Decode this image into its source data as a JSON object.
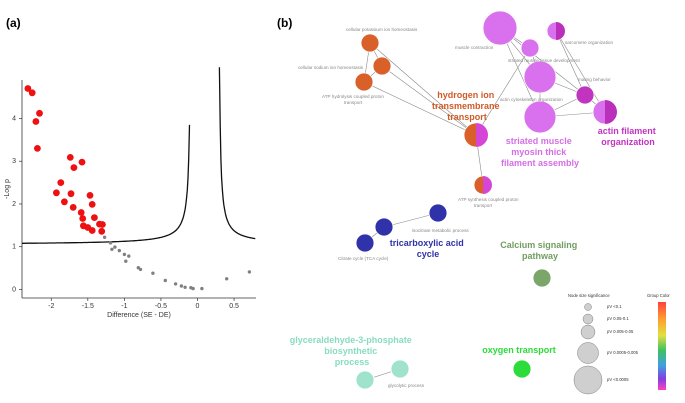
{
  "panels": {
    "a": "(a)",
    "b": "(b)"
  },
  "chart_data": [
    {
      "type": "scatter",
      "panel": "(a)",
      "title": "",
      "xlabel": "Difference (SE - DE)",
      "ylabel": "-Log p",
      "xlim": [
        -2.4,
        0.8
      ],
      "ylim": [
        -0.2,
        4.9
      ],
      "xticks": [
        -2,
        -1.5,
        -1,
        -0.5,
        0,
        0.5
      ],
      "xtick_labels": [
        "-2",
        "-1.5",
        "-1",
        "-0.5",
        "0",
        "0.5"
      ],
      "yticks": [
        0,
        1,
        2,
        3,
        4
      ],
      "ytick_labels": [
        "0",
        "1",
        "2",
        "3",
        "4"
      ],
      "colors": {
        "significant": "#ee1111",
        "nonsignificant": "#808080",
        "threshold": "#111111"
      },
      "series": [
        {
          "name": "",
          "color": "#ee1111",
          "points": [
            [
              -2.32,
              4.7
            ],
            [
              -2.26,
              4.6
            ],
            [
              -2.16,
              4.12
            ],
            [
              -2.21,
              3.93
            ],
            [
              -2.19,
              3.3
            ],
            [
              -1.74,
              3.09
            ],
            [
              -1.69,
              2.85
            ],
            [
              -1.58,
              2.98
            ],
            [
              -1.87,
              2.5
            ],
            [
              -1.93,
              2.26
            ],
            [
              -1.82,
              2.05
            ],
            [
              -1.73,
              2.24
            ],
            [
              -1.7,
              1.92
            ],
            [
              -1.47,
              2.2
            ],
            [
              -1.44,
              1.99
            ],
            [
              -1.59,
              1.8
            ],
            [
              -1.57,
              1.66
            ],
            [
              -1.56,
              1.49
            ],
            [
              -1.5,
              1.45
            ],
            [
              -1.41,
              1.68
            ],
            [
              -1.34,
              1.53
            ],
            [
              -1.3,
              1.52
            ],
            [
              -1.31,
              1.36
            ],
            [
              -1.44,
              1.38
            ]
          ]
        },
        {
          "name": "",
          "color": "#808080",
          "points": [
            [
              -1.27,
              1.22
            ],
            [
              -1.19,
              1.09
            ],
            [
              -1.13,
              0.99
            ],
            [
              -1.17,
              0.94
            ],
            [
              -1.07,
              0.91
            ],
            [
              -1.0,
              0.82
            ],
            [
              -0.94,
              0.78
            ],
            [
              -0.98,
              0.66
            ],
            [
              -0.81,
              0.51
            ],
            [
              -0.78,
              0.47
            ],
            [
              -0.61,
              0.38
            ],
            [
              -0.44,
              0.21
            ],
            [
              -0.3,
              0.13
            ],
            [
              -0.22,
              0.08
            ],
            [
              -0.17,
              0.05
            ],
            [
              -0.09,
              0.04
            ],
            [
              -0.06,
              0.02
            ],
            [
              0.06,
              0.02
            ],
            [
              0.4,
              0.25
            ],
            [
              0.71,
              0.41
            ]
          ]
        }
      ]
    },
    {
      "type": "network",
      "panel": "(b)",
      "legend": {
        "size_title": "Node size significance",
        "color_title": "Group Color",
        "size_entries": [
          "pV <0.1",
          "pV 0.05-0.1",
          "pV 0.005-0.05",
          "pV 0.0005-0.005",
          "pV <0.0005"
        ]
      },
      "nodes": [
        {
          "id": "cpih",
          "label": "cellular potassium ion homeostasis",
          "color": "#d96028",
          "size": 3
        },
        {
          "id": "csih",
          "label": "cellular sodium ion homeostasis",
          "color": "#d96028",
          "size": 3
        },
        {
          "id": "atph",
          "label": "ATP hydrolysis coupled proton transport",
          "color": "#d96028",
          "size": 3
        },
        {
          "id": "hitt",
          "label": "hydrogen ion transmembrane transport",
          "color": "#d96028",
          "color2": "#d646d6",
          "size": 4,
          "major": true
        },
        {
          "id": "atps",
          "label": "ATP synthesis coupled proton transport",
          "color": "#d96028",
          "color2": "#d646d6",
          "size": 2
        },
        {
          "id": "mc",
          "label": "muscle contraction",
          "color": "#d970ee",
          "size": 5
        },
        {
          "id": "smg",
          "label": "striated muscle tissue development",
          "color": "#d970ee",
          "size": 3
        },
        {
          "id": "acso",
          "label": "actin cytoskeleton organization",
          "color": "#d970ee",
          "size": 5
        },
        {
          "id": "smmt",
          "label": "striated muscle myosin thick filament assembly",
          "color": "#d970ee",
          "size": 5,
          "major": true
        },
        {
          "id": "ei",
          "label": "sarcomere organization",
          "color": "#d970ee",
          "color2": "#bb30bb",
          "size": 3
        },
        {
          "id": "mb",
          "label": "mating behavior",
          "color": "#c034c0",
          "size": 3
        },
        {
          "id": "afo",
          "label": "actin filament organization",
          "color": "#d970ee",
          "color2": "#bb30bb",
          "size": 4,
          "major": true
        },
        {
          "id": "imp",
          "label": "isocitrate metabolic process",
          "color": "#2f32a8",
          "size": 3
        },
        {
          "id": "tca1",
          "label": "",
          "color": "#2f32a8",
          "size": 3
        },
        {
          "id": "tcc",
          "label": "Citrate cycle (TCA cycle)",
          "color": "#2f32a8",
          "size": 3
        },
        {
          "id": "tcap",
          "label": "tricarboxylic acid cycle",
          "color": "#2f32a8",
          "major": true
        },
        {
          "id": "csp",
          "label": "Calcium signaling pathway",
          "color": "#7aa66a",
          "size": 3,
          "major": true
        },
        {
          "id": "g3p",
          "label": "glyceraldehyde-3-phosphate biosynthetic process",
          "color": "#9fe3cc",
          "size": 3,
          "major": true
        },
        {
          "id": "gp",
          "label": "glycolytic process",
          "color": "#9fe3cc",
          "size": 3
        },
        {
          "id": "ot",
          "label": "oxygen transport",
          "color": "#2bdc3a",
          "size": 3,
          "major": true
        }
      ]
    }
  ]
}
